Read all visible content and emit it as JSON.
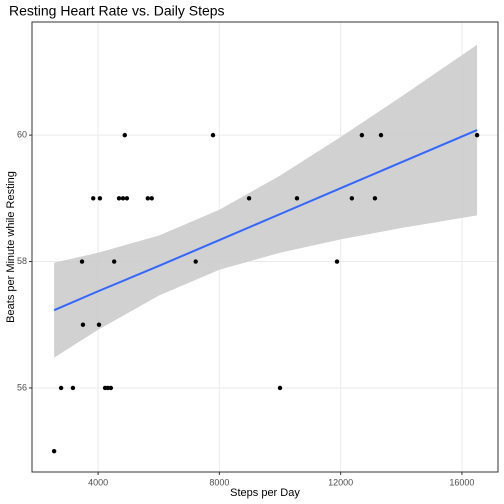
{
  "chart_data": {
    "type": "scatter",
    "title": "Resting Heart Rate vs. Daily Steps",
    "xlabel": "Steps per Day",
    "ylabel": "Beats per Minute while Resting",
    "x": [
      2550,
      2780,
      3170,
      3470,
      3500,
      3840,
      4030,
      4060,
      4230,
      4320,
      4420,
      4530,
      4690,
      4820,
      4950,
      4880,
      5640,
      5770,
      7220,
      7790,
      8980,
      10000,
      10560,
      11880,
      12370,
      12700,
      13130,
      13330,
      16500
    ],
    "y": [
      55,
      56,
      56,
      58,
      57,
      59,
      57,
      59,
      56,
      56,
      56,
      58,
      59,
      59,
      59,
      60,
      59,
      59,
      58,
      60,
      59,
      56,
      59,
      58,
      59,
      60,
      59,
      60,
      60
    ],
    "color": "#000000",
    "fit": {
      "color": "#3366ff",
      "band_color": "#cccccc",
      "x": [
        2550,
        4000,
        6000,
        8000,
        10000,
        12000,
        14000,
        16500
      ],
      "y": [
        57.23,
        57.53,
        57.93,
        58.34,
        58.75,
        59.16,
        59.57,
        60.08
      ],
      "lower": [
        56.48,
        56.92,
        57.46,
        57.87,
        58.14,
        58.35,
        58.53,
        58.73
      ],
      "upper": [
        57.98,
        58.14,
        58.41,
        58.82,
        59.36,
        59.97,
        60.61,
        61.43
      ]
    },
    "xlim": [
      1820,
      17190
    ],
    "ylim": [
      54.67,
      61.79
    ],
    "xticks": [
      4000,
      8000,
      12000,
      16000
    ],
    "yticks": [
      56,
      58,
      60
    ],
    "grid": true
  }
}
